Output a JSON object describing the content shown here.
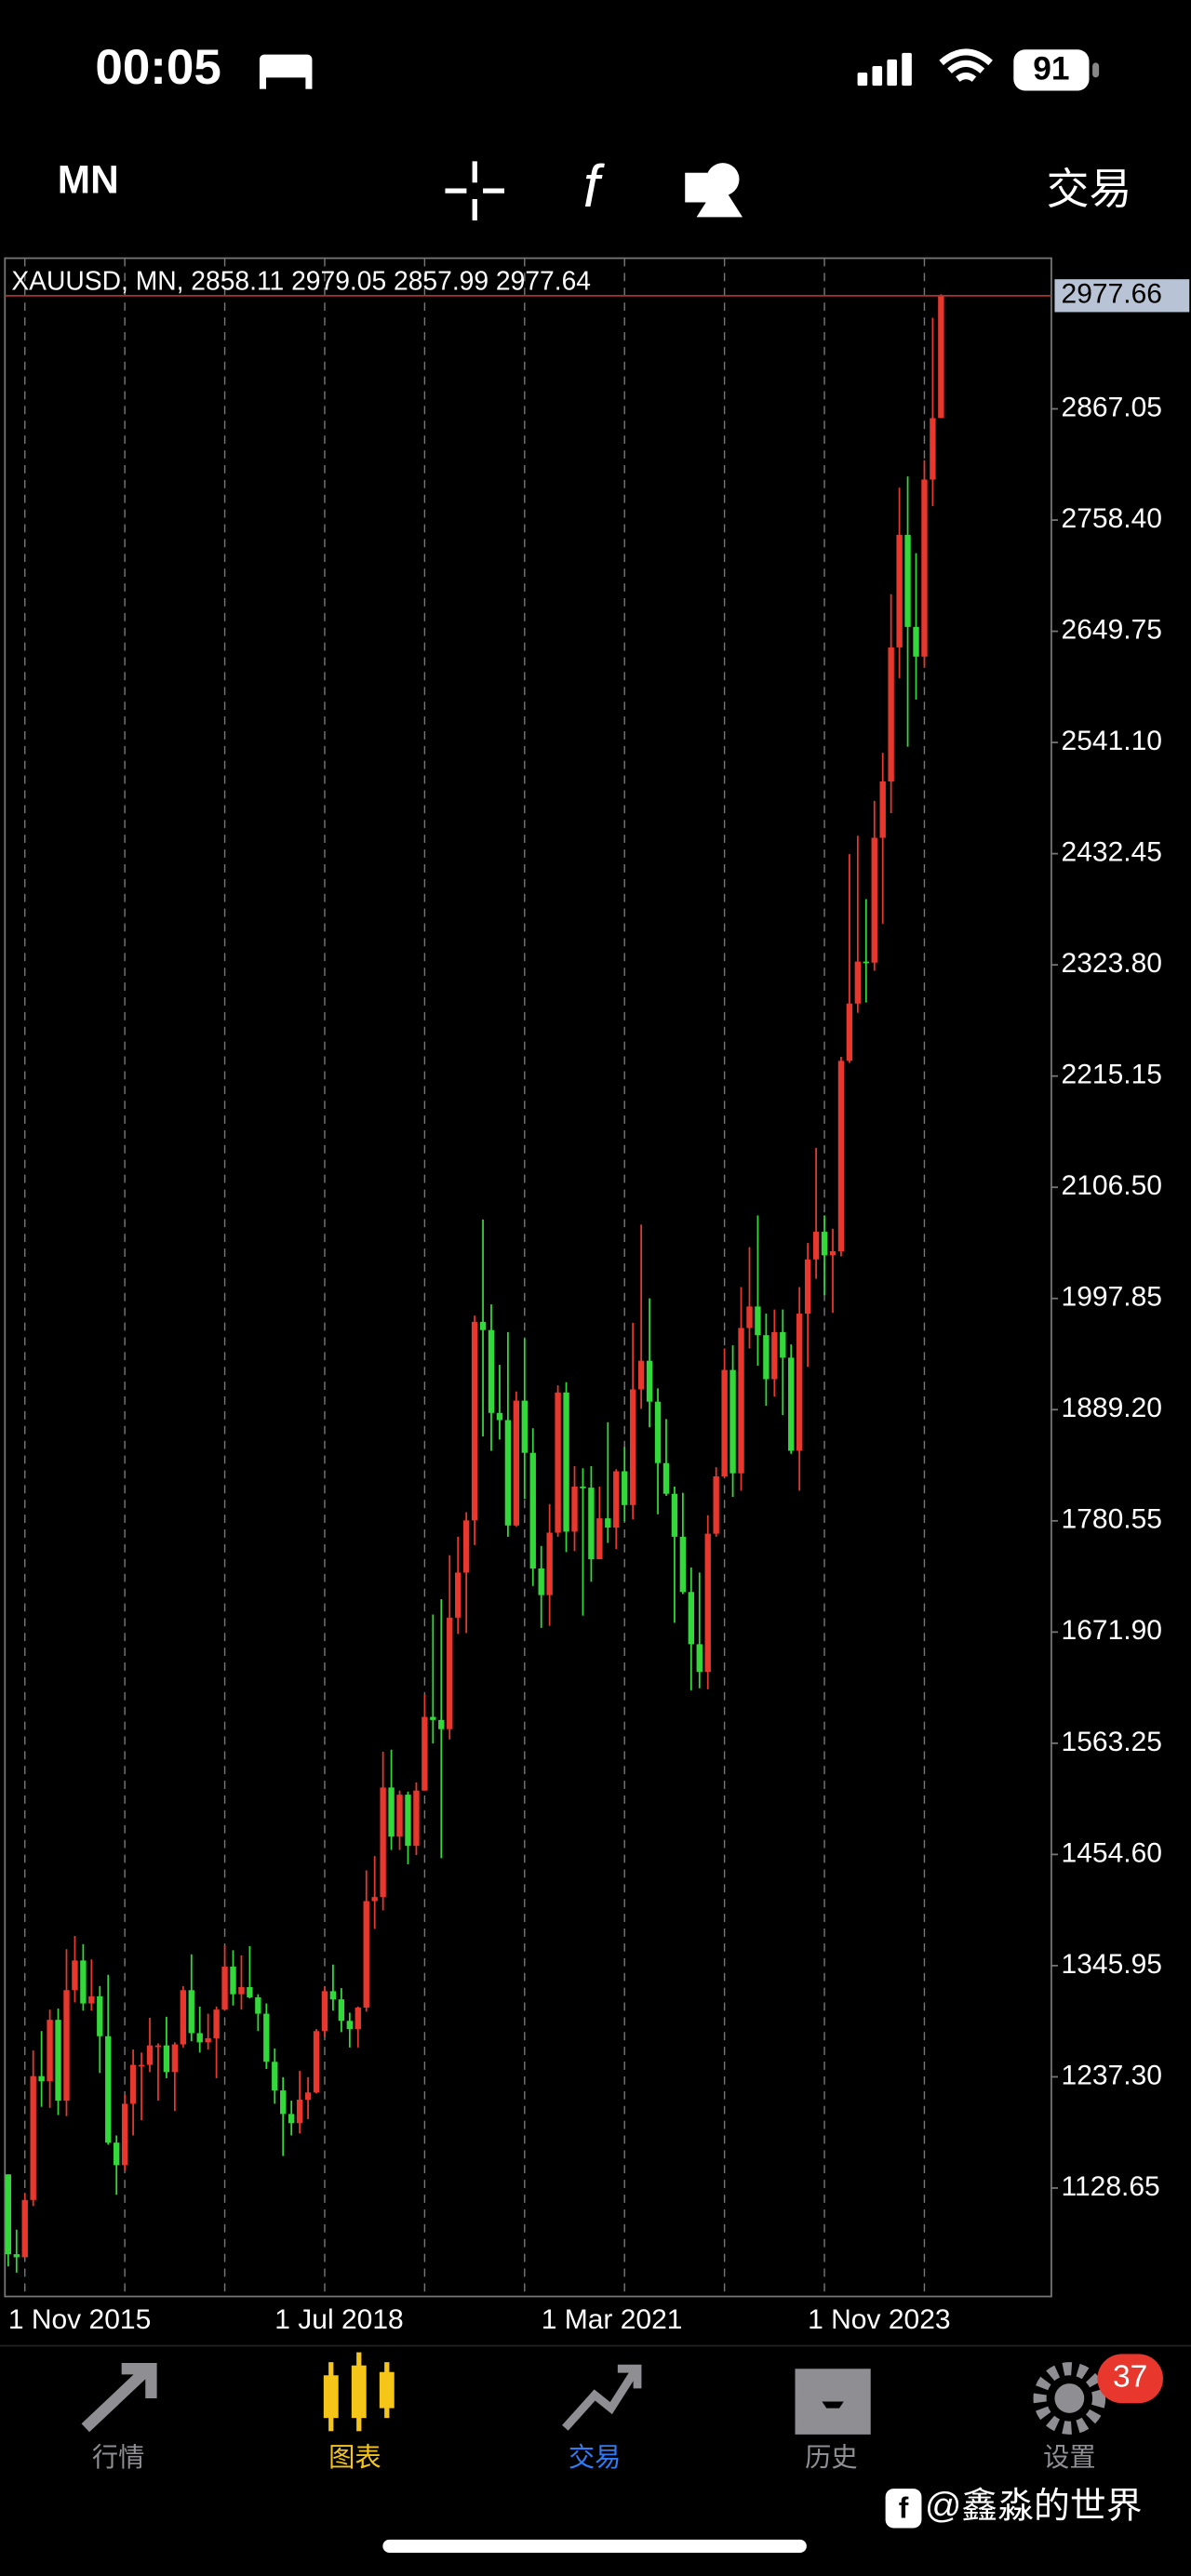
{
  "status_bar": {
    "time": "00:05",
    "battery": "91"
  },
  "toolbar": {
    "timeframe": "MN",
    "trade": "交易"
  },
  "chart_data": {
    "type": "candlestick",
    "title": "XAUUSD, MN, 2858.11 2979.05 2857.99 2977.64",
    "x": [
      "2015-11",
      "2015-12",
      "2016-01",
      "2016-02",
      "2016-03",
      "2016-04",
      "2016-05",
      "2016-06",
      "2016-07",
      "2016-08",
      "2016-09",
      "2016-10",
      "2016-11",
      "2016-12",
      "2017-01",
      "2017-02",
      "2017-03",
      "2017-04",
      "2017-05",
      "2017-06",
      "2017-07",
      "2017-08",
      "2017-09",
      "2017-10",
      "2017-11",
      "2017-12",
      "2018-01",
      "2018-02",
      "2018-03",
      "2018-04",
      "2018-05",
      "2018-06",
      "2018-07",
      "2018-08",
      "2018-09",
      "2018-10",
      "2018-11",
      "2018-12",
      "2019-01",
      "2019-02",
      "2019-03",
      "2019-04",
      "2019-05",
      "2019-06",
      "2019-07",
      "2019-08",
      "2019-09",
      "2019-10",
      "2019-11",
      "2019-12",
      "2020-01",
      "2020-02",
      "2020-03",
      "2020-04",
      "2020-05",
      "2020-06",
      "2020-07",
      "2020-08",
      "2020-09",
      "2020-10",
      "2020-11",
      "2020-12",
      "2021-01",
      "2021-02",
      "2021-03",
      "2021-04",
      "2021-05",
      "2021-06",
      "2021-07",
      "2021-08",
      "2021-09",
      "2021-10",
      "2021-11",
      "2021-12",
      "2022-01",
      "2022-02",
      "2022-03",
      "2022-04",
      "2022-05",
      "2022-06",
      "2022-07",
      "2022-08",
      "2022-09",
      "2022-10",
      "2022-11",
      "2022-12",
      "2023-01",
      "2023-02",
      "2023-03",
      "2023-04",
      "2023-05",
      "2023-06",
      "2023-07",
      "2023-08",
      "2023-09",
      "2023-10",
      "2023-11",
      "2023-12",
      "2024-01",
      "2024-02",
      "2024-03",
      "2024-04",
      "2024-05",
      "2024-06",
      "2024-07",
      "2024-08",
      "2024-09",
      "2024-10",
      "2024-11",
      "2024-12",
      "2025-01",
      "2025-02",
      "2025-03"
    ],
    "open": [
      1142,
      1064,
      1061,
      1117,
      1238,
      1233,
      1293,
      1214,
      1322,
      1351,
      1309,
      1316,
      1277,
      1173,
      1151,
      1211,
      1249,
      1249,
      1268,
      1268,
      1242,
      1269,
      1322,
      1280,
      1271,
      1275,
      1303,
      1345,
      1318,
      1325,
      1315,
      1299,
      1252,
      1224,
      1201,
      1192,
      1215,
      1222,
      1282,
      1321,
      1313,
      1292,
      1284,
      1305,
      1409,
      1413,
      1520,
      1472,
      1513,
      1463,
      1517,
      1589,
      1586,
      1577,
      1686,
      1730,
      1781,
      1975,
      1967,
      1886,
      1879,
      1776,
      1898,
      1847,
      1734,
      1708,
      1769,
      1906,
      1770,
      1814,
      1813,
      1743,
      1783,
      1774,
      1829,
      1796,
      1909,
      1937,
      1897,
      1837,
      1807,
      1765,
      1711,
      1660,
      1633,
      1768,
      1824,
      1928,
      1827,
      1969,
      1990,
      1962,
      1919,
      1965,
      1940,
      1849,
      1983,
      2036,
      2063,
      2040,
      2044,
      2230,
      2286,
      2327,
      2326,
      2448,
      2503,
      2634,
      2744,
      2654,
      2625,
      2798,
      2858.11
    ],
    "high": [
      1142,
      1088,
      1124,
      1263,
      1282,
      1303,
      1304,
      1362,
      1375,
      1367,
      1352,
      1326,
      1337,
      1180,
      1220,
      1264,
      1261,
      1295,
      1270,
      1296,
      1271,
      1326,
      1357,
      1306,
      1299,
      1306,
      1366,
      1361,
      1356,
      1365,
      1318,
      1309,
      1265,
      1237,
      1214,
      1243,
      1237,
      1284,
      1326,
      1347,
      1324,
      1300,
      1306,
      1439,
      1453,
      1555,
      1557,
      1517,
      1516,
      1525,
      1611,
      1689,
      1704,
      1747,
      1765,
      1789,
      1981,
      2075,
      1992,
      1933,
      1965,
      1907,
      1959,
      1871,
      1756,
      1797,
      1913,
      1916,
      1834,
      1832,
      1834,
      1814,
      1877,
      1831,
      1853,
      1974,
      2070,
      1998,
      1910,
      1880,
      1814,
      1808,
      1735,
      1730,
      1786,
      1833,
      1949,
      1952,
      2009,
      2048,
      2079,
      1983,
      1987,
      1987,
      1953,
      2009,
      2052,
      2145,
      2079,
      2066,
      2234,
      2432,
      2450,
      2388,
      2484,
      2531,
      2686,
      2790,
      2801,
      2726,
      2817,
      2956,
      2979.05
    ],
    "low": [
      1052,
      1046,
      1062,
      1111,
      1208,
      1207,
      1200,
      1199,
      1310,
      1302,
      1302,
      1241,
      1171,
      1122,
      1146,
      1180,
      1195,
      1242,
      1214,
      1236,
      1204,
      1266,
      1272,
      1261,
      1264,
      1236,
      1302,
      1307,
      1303,
      1314,
      1282,
      1245,
      1211,
      1160,
      1180,
      1182,
      1196,
      1221,
      1276,
      1302,
      1281,
      1266,
      1266,
      1301,
      1382,
      1400,
      1459,
      1459,
      1445,
      1454,
      1517,
      1563,
      1451,
      1567,
      1670,
      1671,
      1757,
      1863,
      1849,
      1860,
      1765,
      1775,
      1802,
      1717,
      1676,
      1678,
      1765,
      1750,
      1751,
      1688,
      1721,
      1746,
      1759,
      1753,
      1780,
      1782,
      1890,
      1872,
      1787,
      1805,
      1681,
      1709,
      1615,
      1617,
      1616,
      1765,
      1823,
      1804,
      1810,
      1949,
      1932,
      1893,
      1902,
      1884,
      1846,
      1810,
      1931,
      2017,
      2001,
      1984,
      2039,
      2228,
      2277,
      2287,
      2318,
      2364,
      2472,
      2604,
      2537,
      2583,
      2614,
      2772,
      2857.99
    ],
    "close": [
      1064,
      1061,
      1117,
      1238,
      1233,
      1293,
      1214,
      1322,
      1351,
      1309,
      1316,
      1277,
      1173,
      1151,
      1211,
      1249,
      1249,
      1268,
      1268,
      1242,
      1269,
      1322,
      1280,
      1271,
      1275,
      1303,
      1345,
      1318,
      1325,
      1315,
      1299,
      1252,
      1224,
      1201,
      1192,
      1215,
      1222,
      1282,
      1321,
      1313,
      1292,
      1284,
      1305,
      1409,
      1413,
      1520,
      1472,
      1513,
      1463,
      1517,
      1589,
      1586,
      1577,
      1686,
      1730,
      1781,
      1975,
      1967,
      1886,
      1879,
      1776,
      1898,
      1847,
      1734,
      1708,
      1769,
      1906,
      1770,
      1814,
      1813,
      1743,
      1783,
      1774,
      1829,
      1796,
      1909,
      1937,
      1897,
      1837,
      1807,
      1765,
      1711,
      1660,
      1633,
      1768,
      1824,
      1928,
      1827,
      1969,
      1990,
      1962,
      1919,
      1965,
      1940,
      1849,
      1983,
      2036,
      2063,
      2040,
      2044,
      2230,
      2286,
      2327,
      2326,
      2448,
      2503,
      2634,
      2744,
      2654,
      2625,
      2798,
      2858,
      2977.64
    ],
    "up_color": "#e8382e",
    "down_color": "#33d93a",
    "last_price": 2977.66,
    "ylim": [
      1022.7,
      3014.3
    ],
    "yticks": [
      1128.65,
      {
        "value": 1237.3,
        "label": "1237.30"
      },
      1345.95,
      {
        "value": 1454.6,
        "label": "1454.60"
      },
      1563.25,
      {
        "value": 1671.9,
        "label": "1671.90"
      },
      1780.55,
      {
        "value": 1889.2,
        "label": "1889.20"
      },
      1997.85,
      {
        "value": 2106.5,
        "label": "2106.50"
      },
      2215.15,
      {
        "value": 2323.8,
        "label": "2323.80"
      },
      2432.45,
      {
        "value": 2541.1,
        "label": "2541.10"
      },
      2649.75,
      {
        "value": 2758.4,
        "label": "2758.40"
      },
      2867.05
    ],
    "xticks": [
      {
        "value": "2015-11",
        "label": "1 Nov 2015"
      },
      {
        "value": "2018-07",
        "label": "1 Jul 2018"
      },
      {
        "value": "2021-03",
        "label": "1 Mar 2021"
      },
      {
        "value": "2023-11",
        "label": "1 Nov 2023"
      }
    ],
    "grid": true
  },
  "tab_bar": {
    "tabs": [
      "行情",
      "图表",
      "交易",
      "历史",
      "设置"
    ],
    "badge": "37"
  },
  "watermark": "@鑫淼的世界"
}
